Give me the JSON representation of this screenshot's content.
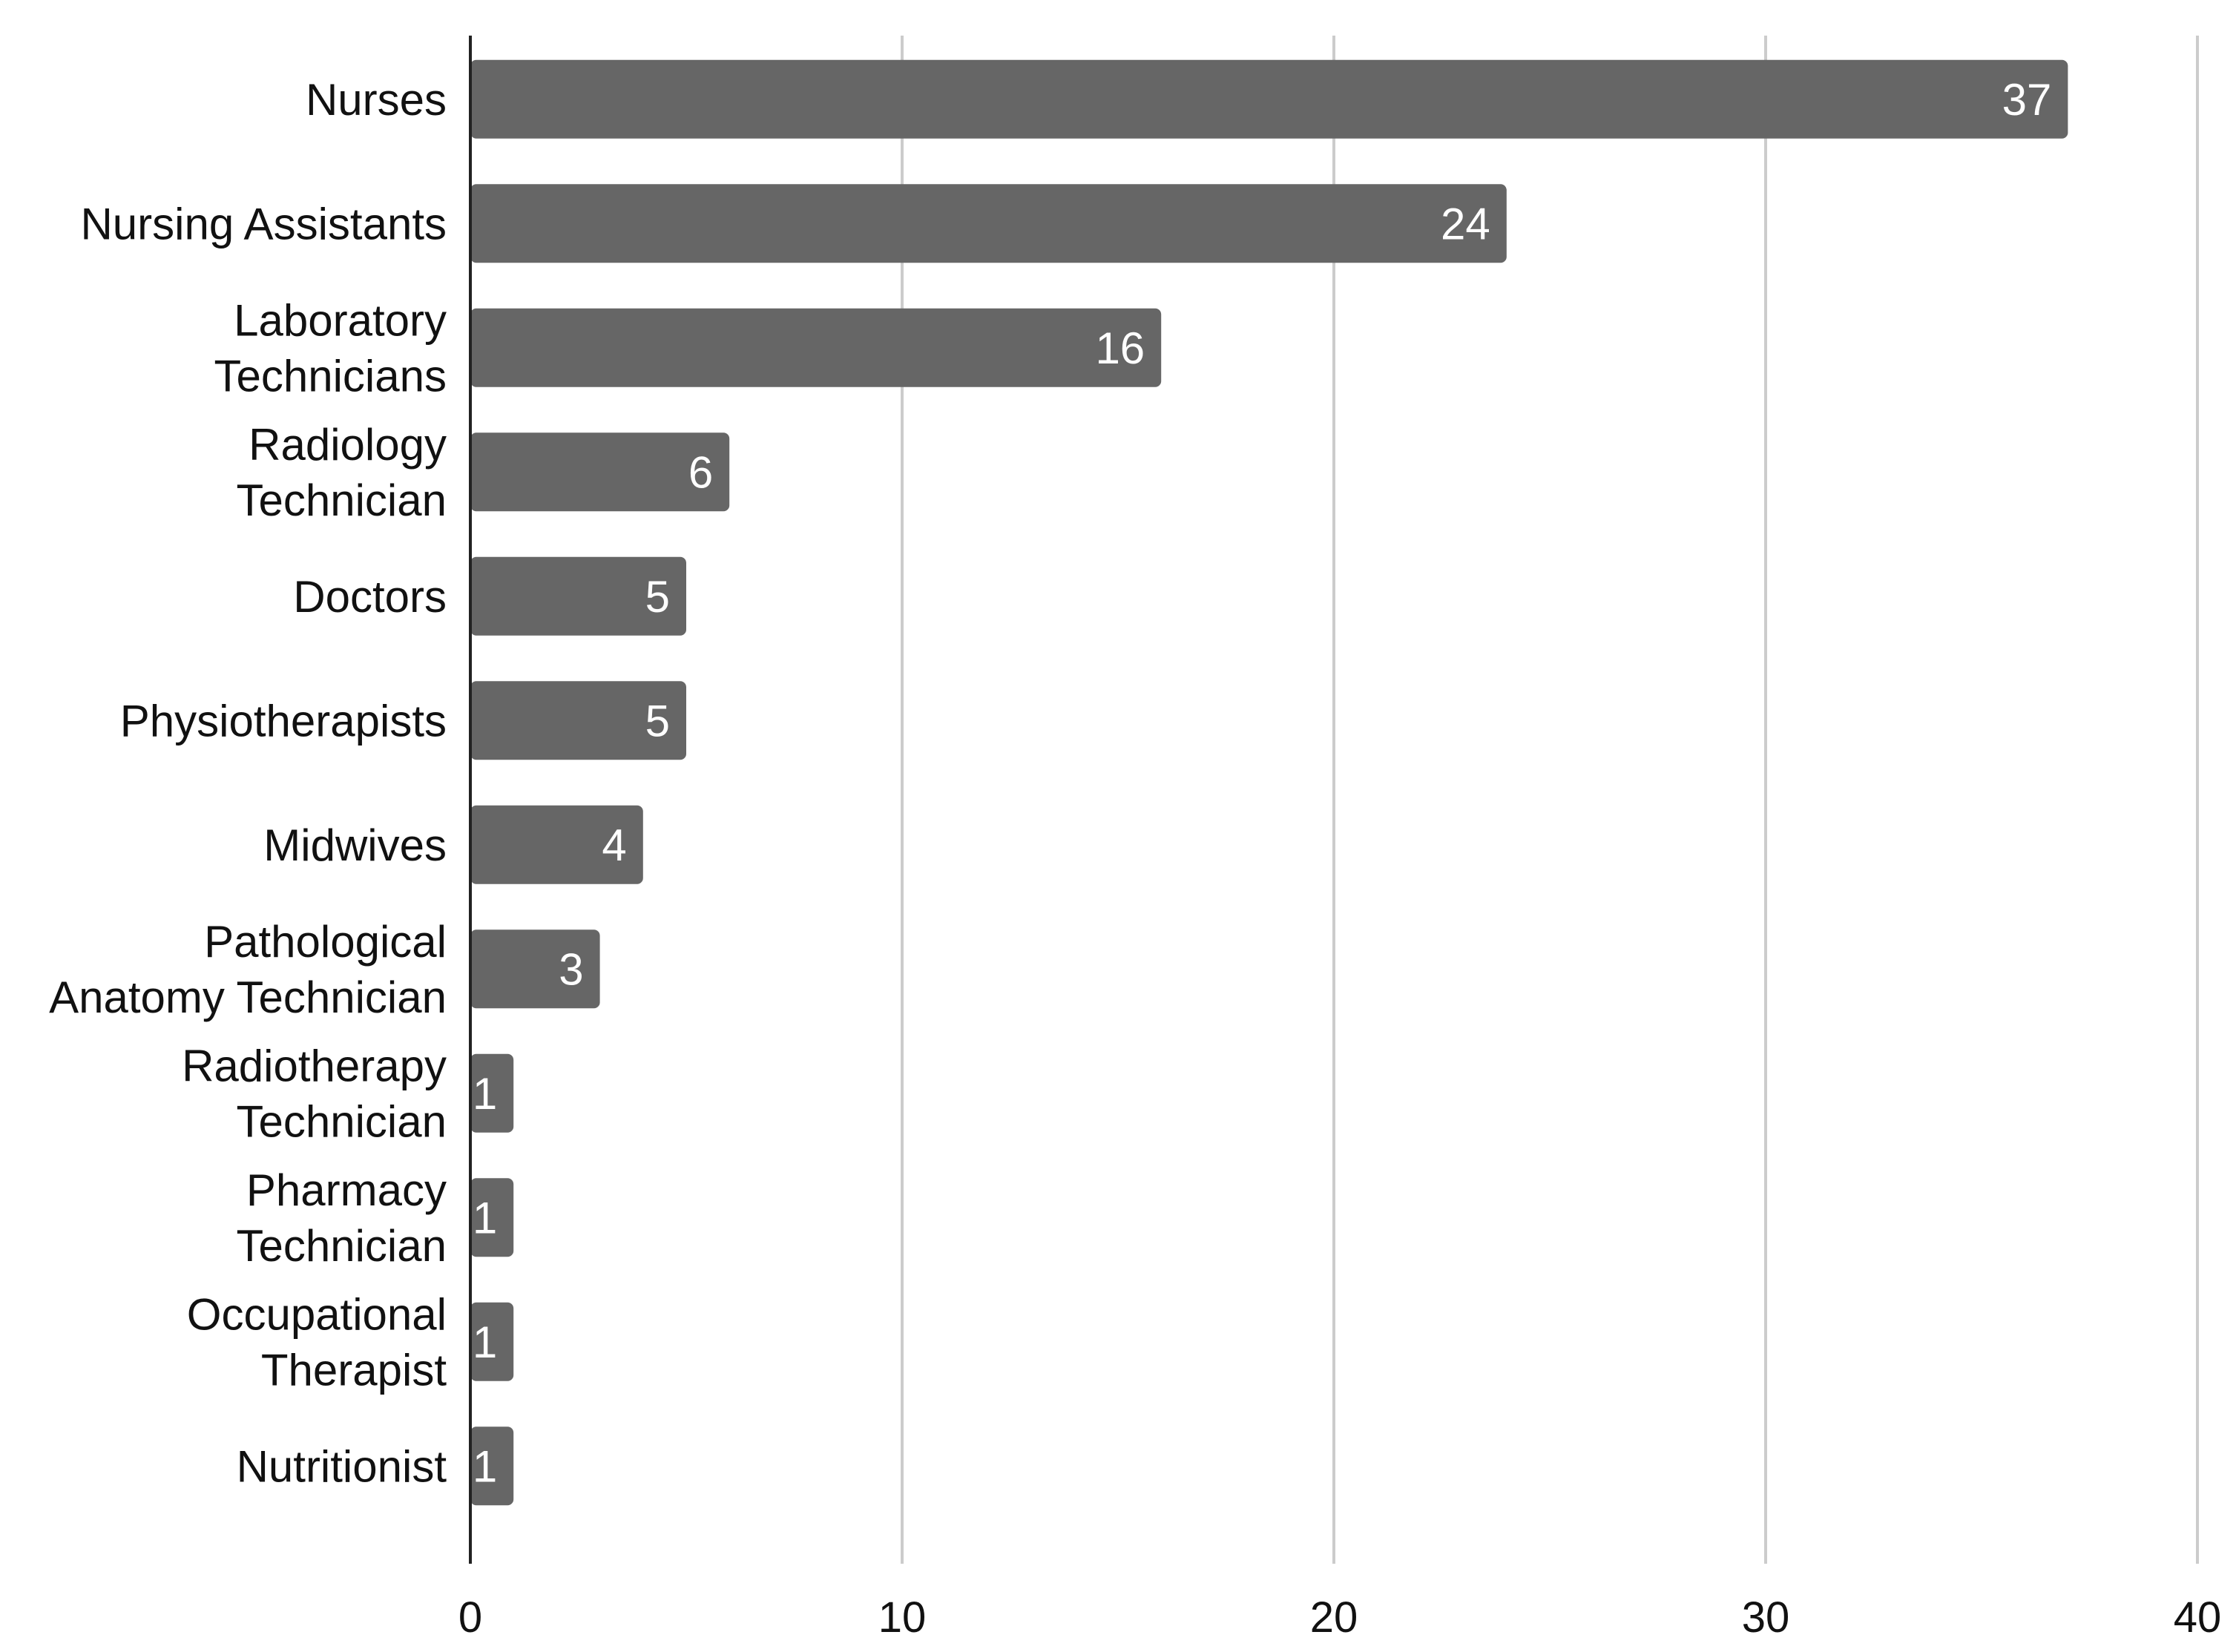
{
  "chart_data": {
    "type": "bar",
    "orientation": "horizontal",
    "title": "",
    "xlabel": "",
    "ylabel": "",
    "categories": [
      "Nurses",
      "Nursing Assistants",
      "Laboratory Technicians",
      "Radiology Technician",
      "Doctors",
      "Physiotherapists",
      "Midwives",
      "Pathological Anatomy Technician",
      "Radiotherapy Technician",
      "Pharmacy Technician",
      "Occupational Therapist",
      "Nutritionist"
    ],
    "category_label_lines": [
      [
        "Nurses"
      ],
      [
        "Nursing Assistants"
      ],
      [
        "Laboratory",
        "Technicians"
      ],
      [
        "Radiology",
        "Technician"
      ],
      [
        "Doctors"
      ],
      [
        "Physiotherapists"
      ],
      [
        "Midwives"
      ],
      [
        "Pathological",
        "Anatomy Technician"
      ],
      [
        "Radiotherapy",
        "Technician"
      ],
      [
        "Pharmacy",
        "Technician"
      ],
      [
        "Occupational",
        "Therapist"
      ],
      [
        "Nutritionist"
      ]
    ],
    "values": [
      37,
      24,
      16,
      6,
      5,
      5,
      4,
      3,
      1,
      1,
      1,
      1
    ],
    "data_labels": [
      "37",
      "24",
      "16",
      "6",
      "5",
      "5",
      "4",
      "3",
      "1",
      "1",
      "1",
      "1"
    ],
    "xlim": [
      0,
      40
    ],
    "xticks": [
      0,
      10,
      20,
      30,
      40
    ],
    "xtick_labels": [
      "0",
      "10",
      "20",
      "30",
      "40"
    ],
    "grid": "vertical",
    "legend": "none",
    "colors": {
      "bar": "#666666",
      "gridline": "#cccccc",
      "axis": "#222222",
      "label": "#111111",
      "value_label": "#ffffff"
    }
  }
}
